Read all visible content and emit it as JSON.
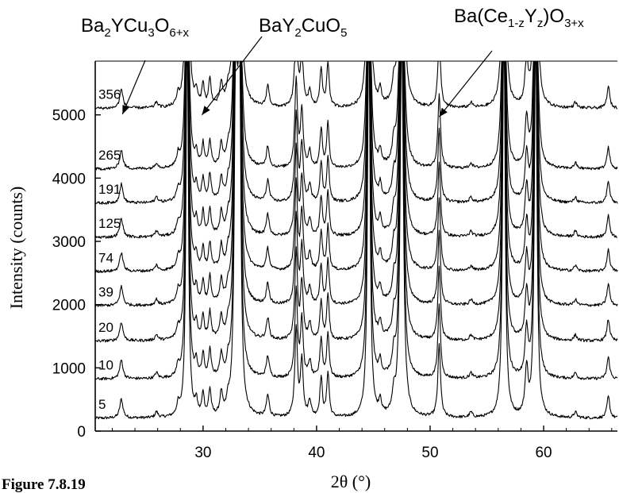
{
  "chart_data": {
    "type": "line",
    "title": "",
    "xlabel": "2θ (°)",
    "ylabel": "Intensity (counts)",
    "xlim": [
      20.5,
      66.5
    ],
    "ylim": [
      0,
      5850
    ],
    "x_ticks": [
      30,
      40,
      50,
      60
    ],
    "y_ticks": [
      0,
      1000,
      2000,
      3000,
      4000,
      5000
    ],
    "grid": false,
    "legend": "none",
    "series": [
      {
        "name": "5",
        "baseline": 200
      },
      {
        "name": "10",
        "baseline": 820
      },
      {
        "name": "20",
        "baseline": 1420
      },
      {
        "name": "39",
        "baseline": 1980
      },
      {
        "name": "74",
        "baseline": 2520
      },
      {
        "name": "125",
        "baseline": 3060
      },
      {
        "name": "191",
        "baseline": 3600
      },
      {
        "name": "265",
        "baseline": 4140
      },
      {
        "name": "356",
        "baseline": 5100
      }
    ],
    "peaks": [
      {
        "x": 22.8,
        "h": 300,
        "w": 0.17
      },
      {
        "x": 25.9,
        "h": 90,
        "w": 0.15
      },
      {
        "x": 27.8,
        "h": 170,
        "w": 0.14
      },
      {
        "x": 28.6,
        "h": 6500,
        "w": 0.12
      },
      {
        "x": 29.4,
        "h": 220,
        "w": 0.13
      },
      {
        "x": 30.0,
        "h": 360,
        "w": 0.12
      },
      {
        "x": 30.6,
        "h": 420,
        "w": 0.13
      },
      {
        "x": 31.6,
        "h": 340,
        "w": 0.13
      },
      {
        "x": 32.2,
        "h": 170,
        "w": 0.12
      },
      {
        "x": 32.9,
        "h": 6500,
        "w": 0.14
      },
      {
        "x": 33.2,
        "h": 6500,
        "w": 0.12
      },
      {
        "x": 35.7,
        "h": 340,
        "w": 0.15
      },
      {
        "x": 38.2,
        "h": 1400,
        "w": 0.14
      },
      {
        "x": 38.7,
        "h": 900,
        "w": 0.14
      },
      {
        "x": 39.4,
        "h": 260,
        "w": 0.14
      },
      {
        "x": 40.4,
        "h": 620,
        "w": 0.13
      },
      {
        "x": 41.0,
        "h": 700,
        "w": 0.13
      },
      {
        "x": 44.6,
        "h": 6500,
        "w": 0.13
      },
      {
        "x": 45.6,
        "h": 230,
        "w": 0.13
      },
      {
        "x": 46.8,
        "h": 300,
        "w": 0.14
      },
      {
        "x": 47.5,
        "h": 6500,
        "w": 0.16
      },
      {
        "x": 50.8,
        "h": 1150,
        "w": 0.14
      },
      {
        "x": 53.6,
        "h": 80,
        "w": 0.15
      },
      {
        "x": 56.5,
        "h": 6500,
        "w": 0.13
      },
      {
        "x": 58.5,
        "h": 720,
        "w": 0.16
      },
      {
        "x": 59.3,
        "h": 6500,
        "w": 0.13
      },
      {
        "x": 62.8,
        "h": 90,
        "w": 0.15
      },
      {
        "x": 65.7,
        "h": 340,
        "w": 0.15
      }
    ],
    "annotations": [
      {
        "id": "ybco",
        "base": "Ba",
        "parts": [
          [
            "2",
            "sub"
          ],
          [
            "YCu",
            "n"
          ],
          [
            "3",
            "sub"
          ],
          [
            "O",
            "n"
          ],
          [
            "6+x",
            "sub"
          ]
        ],
        "arrow_to": [
          22.9,
          5010
        ]
      },
      {
        "id": "bay2cuo5",
        "base": "BaY",
        "parts": [
          [
            "2",
            "sub"
          ],
          [
            "CuO",
            "n"
          ],
          [
            "5",
            "sub"
          ]
        ],
        "arrow_to": [
          29.9,
          5000
        ]
      },
      {
        "id": "bacey",
        "base": "Ba(Ce",
        "parts": [
          [
            "1-z",
            "sub"
          ],
          [
            "Y",
            "n"
          ],
          [
            "z",
            "sub"
          ],
          [
            ")O",
            "n"
          ],
          [
            "3+x",
            "sub"
          ]
        ],
        "arrow_to": [
          50.8,
          4970
        ]
      }
    ]
  },
  "figure": {
    "caption": "Figure 7.8.19"
  }
}
